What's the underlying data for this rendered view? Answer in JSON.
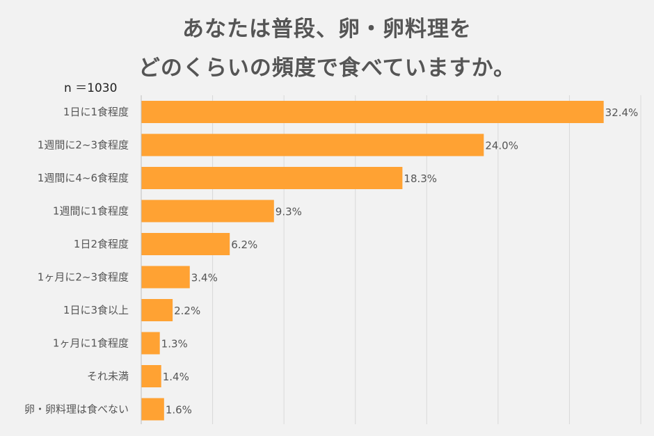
{
  "title": {
    "line1": "あなたは普段、卵・卵料理を",
    "line2": "どのくらいの頻度で食べていますか。"
  },
  "sample_size": "n ＝1030",
  "colors": {
    "bar": "#ffa233",
    "grid": "#d9d9d9",
    "axis": "#bfbfbf"
  },
  "chart_data": {
    "type": "bar",
    "orientation": "horizontal",
    "categories": [
      "1日に1食程度",
      "1週間に2~3食程度",
      "1週間に4~6食程度",
      "1週間に1食程度",
      "1日2食程度",
      "1ヶ月に2~3食程度",
      "1日に3食以上",
      "1ヶ月に1食程度",
      "それ未満",
      "卵・卵料理は食べない"
    ],
    "values": [
      32.4,
      24.0,
      18.3,
      9.3,
      6.2,
      3.4,
      2.2,
      1.3,
      1.4,
      1.6
    ],
    "value_labels": [
      "32.4%",
      "24.0%",
      "18.3%",
      "9.3%",
      "6.2%",
      "3.4%",
      "2.2%",
      "1.3%",
      "1.4%",
      "1.6%"
    ],
    "xlim": [
      0,
      35
    ],
    "grid": true
  }
}
